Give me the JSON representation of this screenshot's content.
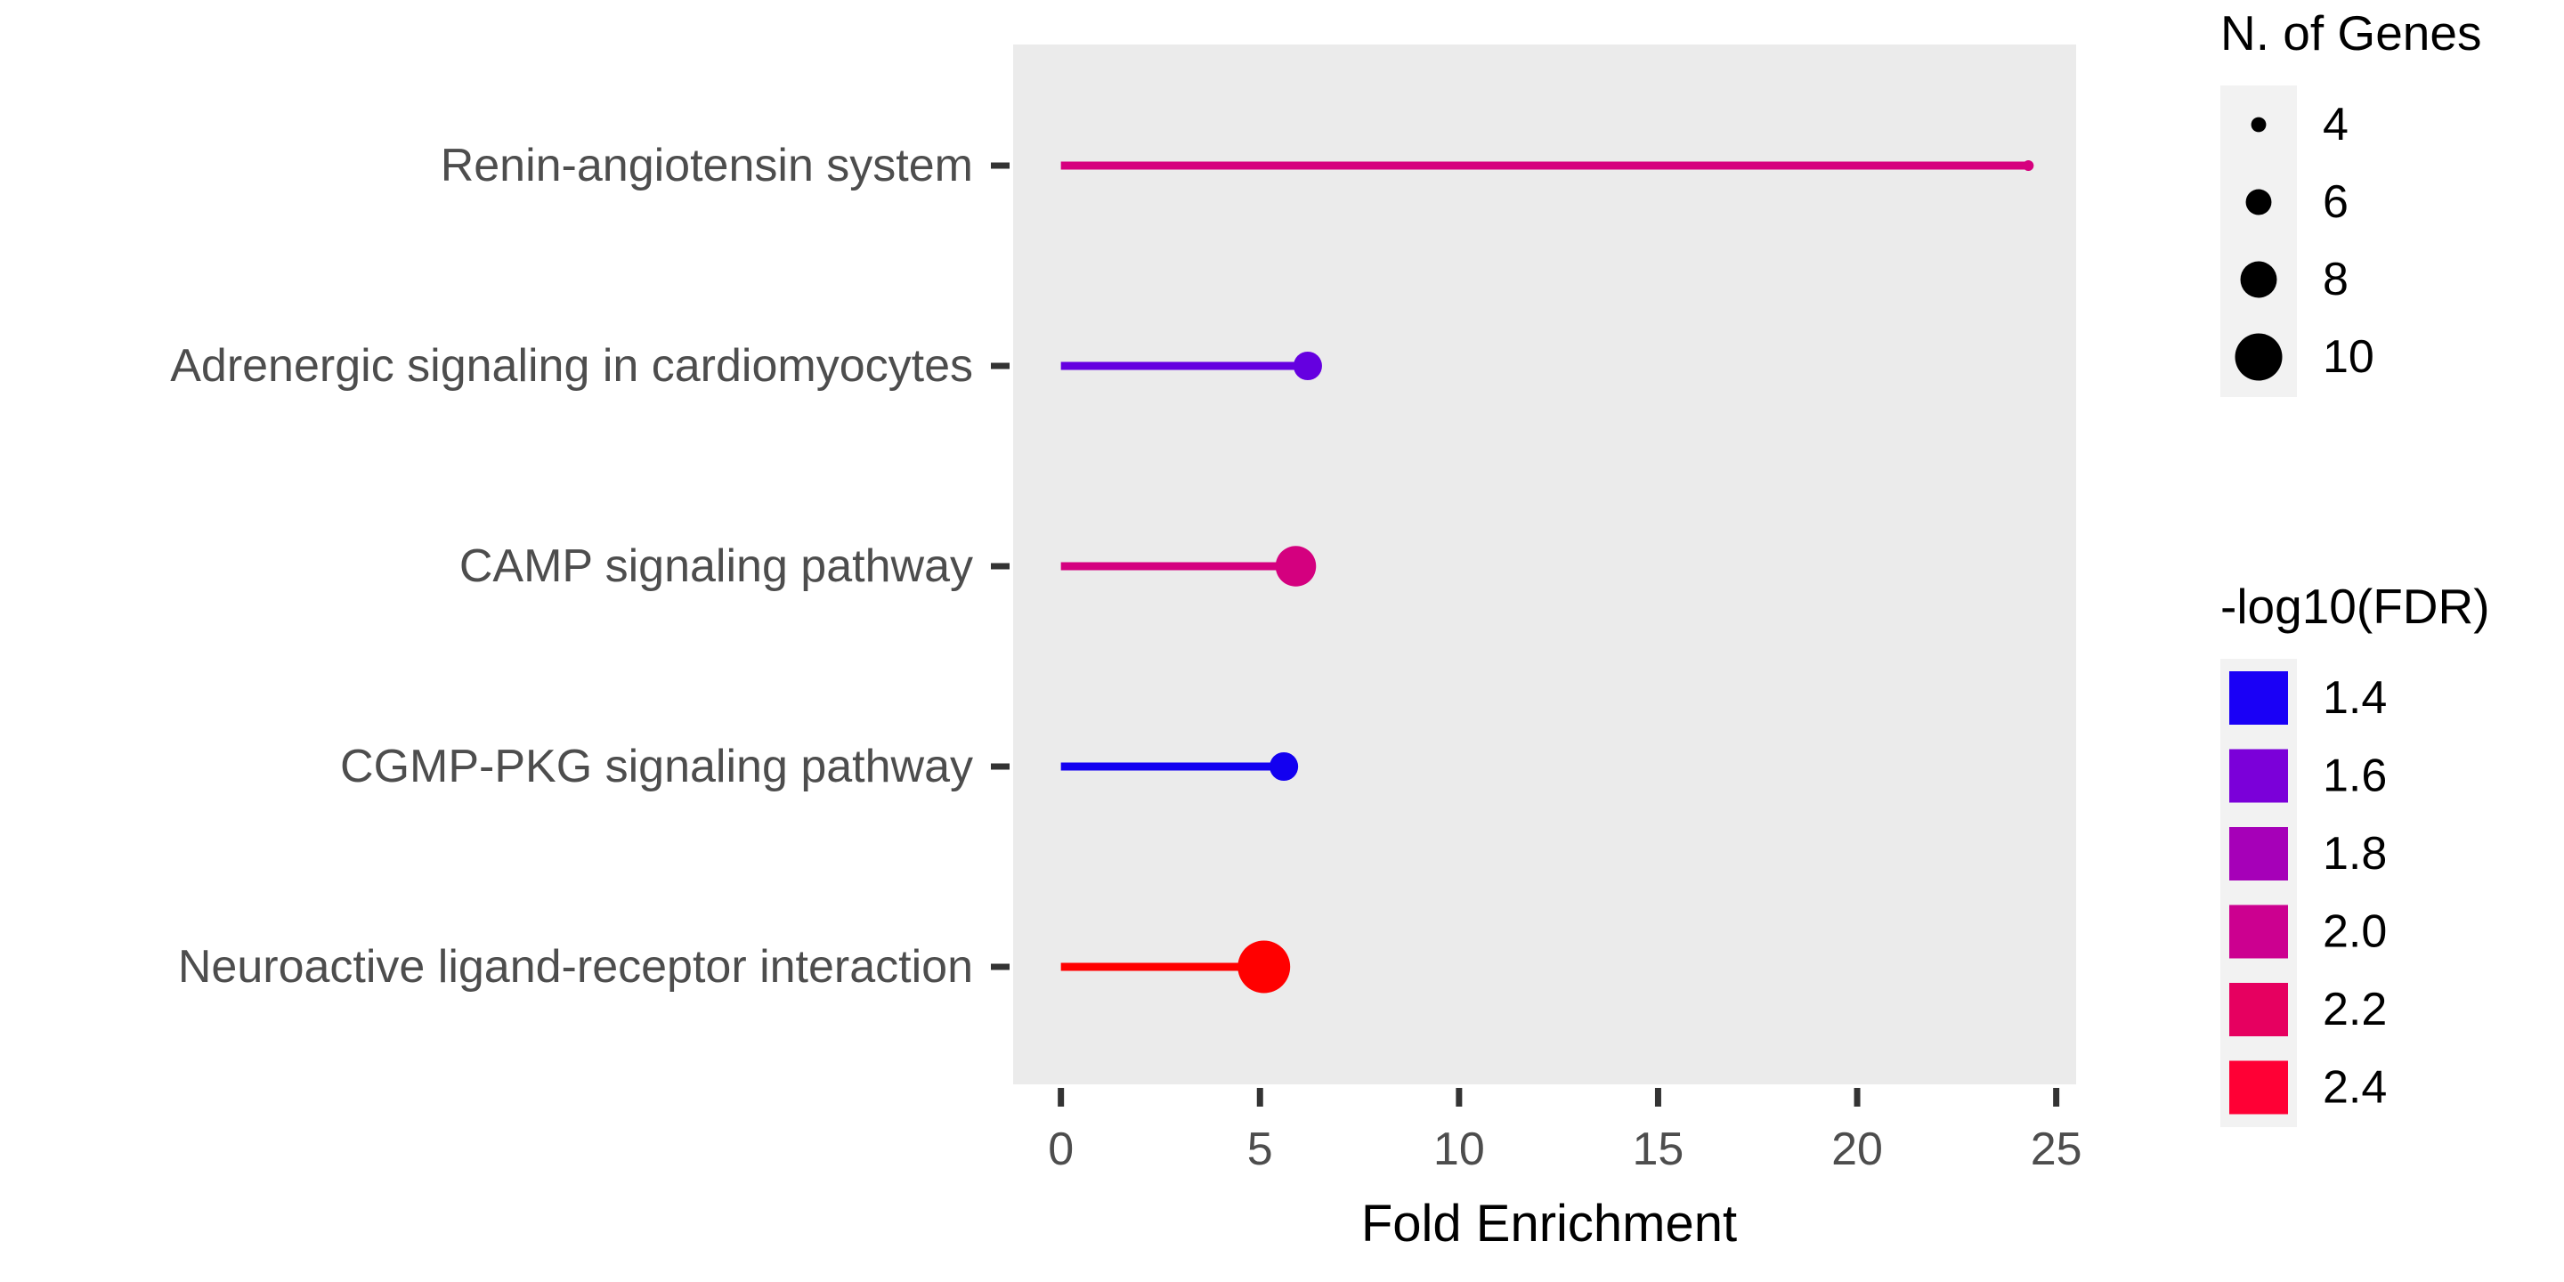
{
  "chart_data": {
    "type": "lollipop",
    "xlabel": "Fold Enrichment",
    "ylabel": "",
    "xlim": [
      -1.2,
      25.5
    ],
    "x_ticks": [
      0,
      5,
      10,
      15,
      20,
      25
    ],
    "x_tick_labels": [
      "0",
      "5",
      "10",
      "15",
      "20",
      "25"
    ],
    "grid": false,
    "panel_background": "#ebebeb",
    "legend_position": "right",
    "categories": [
      "Renin-angiotensin system",
      "Adrenergic signaling in cardiomyocytes",
      "CAMP signaling pathway",
      "CGMP-PKG signaling pathway",
      "Neuroactive ligand-receptor interaction"
    ],
    "points": [
      {
        "pathway": "Renin-angiotensin system",
        "fold_enrichment": 24.3,
        "n_genes": 3,
        "neg_log10_fdr": 2.1,
        "color": "#d6007e"
      },
      {
        "pathway": "Adrenergic signaling in cardiomyocytes",
        "fold_enrichment": 6.2,
        "n_genes": 6,
        "neg_log10_fdr": 1.6,
        "color": "#6500e0"
      },
      {
        "pathway": "CAMP signaling pathway",
        "fold_enrichment": 5.9,
        "n_genes": 8,
        "neg_log10_fdr": 2.0,
        "color": "#d4007f"
      },
      {
        "pathway": "CGMP-PKG signaling pathway",
        "fold_enrichment": 5.6,
        "n_genes": 6,
        "neg_log10_fdr": 1.3,
        "color": "#1300f0"
      },
      {
        "pathway": "Neuroactive ligand-receptor interaction",
        "fold_enrichment": 5.1,
        "n_genes": 10,
        "neg_log10_fdr": 2.5,
        "color": "#ff0000"
      }
    ],
    "size_legend": {
      "title": "N. of Genes",
      "items": [
        {
          "label": "4",
          "value": 4
        },
        {
          "label": "6",
          "value": 6
        },
        {
          "label": "8",
          "value": 8
        },
        {
          "label": "10",
          "value": 10
        }
      ]
    },
    "color_legend": {
      "title": "-log10(FDR)",
      "items": [
        {
          "label": "1.4",
          "color": "#1a00f6"
        },
        {
          "label": "1.6",
          "color": "#7b00d9"
        },
        {
          "label": "1.8",
          "color": "#a600b8"
        },
        {
          "label": "2.0",
          "color": "#cc0090"
        },
        {
          "label": "2.2",
          "color": "#e60060"
        },
        {
          "label": "2.4",
          "color": "#ff0035"
        }
      ]
    }
  }
}
